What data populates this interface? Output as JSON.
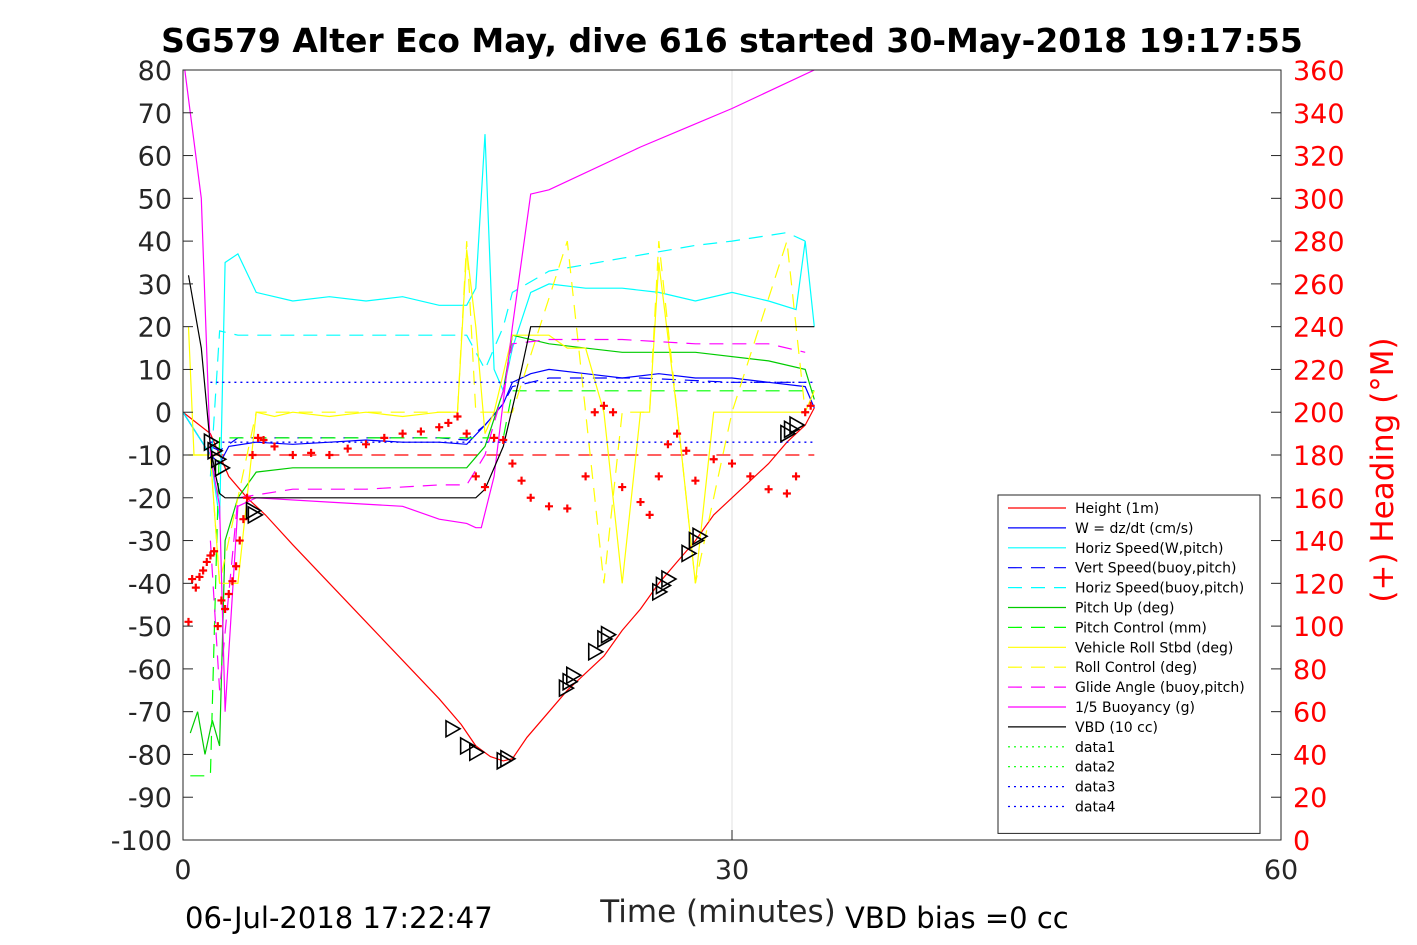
{
  "chart_data": {
    "type": "line",
    "title": "SG579 Alter Eco May, dive 616 started 30-May-2018 19:17:55",
    "xlabel": "Time (minutes)",
    "ylabel_right": "(+) Heading (°M)",
    "xlim": [
      0,
      60
    ],
    "ylim": [
      -100,
      80
    ],
    "ylim_right": [
      0,
      360
    ],
    "x_ticks": [
      "0",
      "30",
      "60"
    ],
    "y_ticks": [
      "80",
      "70",
      "60",
      "50",
      "40",
      "30",
      "20",
      "10",
      "0",
      "-10",
      "-20",
      "-30",
      "-40",
      "-50",
      "-60",
      "-70",
      "-80",
      "-90",
      "-100"
    ],
    "y_right_ticks": [
      "360",
      "340",
      "320",
      "300",
      "280",
      "260",
      "240",
      "220",
      "200",
      "180",
      "160",
      "140",
      "120",
      "100",
      "80",
      "60",
      "40",
      "20",
      "0"
    ],
    "grid": "x-only",
    "legend_position": "right",
    "footer_left": "06-Jul-2018 17:22:47",
    "footer_right": "VBD bias =0 cc",
    "series": [
      {
        "name": "Height (1m)",
        "color": "#ff0000",
        "style": "solid",
        "x": [
          0.0,
          1.5,
          2.0,
          2.5,
          3.5,
          4.5,
          6,
          8,
          10,
          12,
          14,
          15.2,
          16,
          16.8,
          17.5,
          18.0,
          18.8,
          20,
          21,
          22,
          23,
          24,
          25,
          26,
          27,
          28,
          29,
          30,
          31,
          32,
          33,
          34,
          34.5
        ],
        "y": [
          0,
          -5,
          -10,
          -15,
          -20,
          -24,
          -31,
          -40,
          -49,
          -58,
          -67,
          -73,
          -78,
          -80.5,
          -81.5,
          -81,
          -76,
          -70,
          -65,
          -61,
          -57,
          -51,
          -46,
          -40,
          -35,
          -30,
          -24,
          -20,
          -16,
          -12,
          -7,
          -3,
          1
        ]
      },
      {
        "name": "W = dz/dt (cm/s)",
        "color": "#0000ff",
        "style": "solid",
        "x": [
          0,
          1.5,
          2,
          2.5,
          4,
          6,
          8,
          10,
          12,
          14,
          15.5,
          16.5,
          17.5,
          18,
          19,
          20,
          22,
          24,
          26,
          28,
          30,
          32,
          34,
          34.5
        ],
        "y": [
          0,
          -10,
          -12,
          -8,
          -7,
          -7.5,
          -7,
          -6.5,
          -7,
          -7,
          -7.5,
          -3,
          2,
          7,
          9,
          10,
          9,
          8,
          9,
          8,
          8,
          7,
          6,
          1
        ]
      },
      {
        "name": "Horiz Speed(W,pitch)",
        "color": "#00ffff",
        "style": "solid",
        "x": [
          0,
          1.5,
          2,
          2.3,
          3,
          4,
          6,
          8,
          10,
          12,
          14,
          15.5,
          16,
          16.5,
          17,
          17.5,
          18,
          19,
          20,
          22,
          24,
          26,
          28,
          30,
          32,
          33.5,
          34,
          34.5
        ],
        "y": [
          0,
          -10,
          -25,
          35,
          37,
          28,
          26,
          27,
          26,
          27,
          25,
          25,
          29,
          65,
          10,
          5,
          15,
          28,
          30,
          29,
          29,
          28,
          26,
          28,
          26,
          24,
          40,
          20
        ]
      },
      {
        "name": "Vert Speed(buoy,pitch)",
        "color": "#0000ff",
        "style": "dashed",
        "x": [
          1.5,
          2,
          3,
          6,
          10,
          14,
          15.5,
          16.5,
          17.5,
          18,
          20,
          25,
          30,
          34
        ],
        "y": [
          -8,
          -9,
          -6,
          -6,
          -6,
          -6,
          -6.5,
          -3,
          2,
          6,
          8,
          8,
          7,
          7
        ]
      },
      {
        "name": "Horiz Speed(buoy,pitch)",
        "color": "#00ffff",
        "style": "dashed",
        "x": [
          1.5,
          2,
          3,
          6,
          10,
          14,
          15.5,
          16.5,
          17.5,
          18,
          20,
          24,
          28,
          30,
          33,
          34
        ],
        "y": [
          -15,
          19,
          18,
          18,
          18,
          18,
          18,
          10,
          20,
          28,
          33,
          36,
          39,
          40,
          42,
          40
        ]
      },
      {
        "name": "Pitch Up (deg)",
        "color": "#00cc00",
        "style": "solid",
        "x": [
          0.4,
          0.8,
          1.2,
          1.6,
          2,
          2.3,
          3,
          4,
          6,
          10,
          14,
          15.5,
          16.5,
          17.5,
          18,
          20,
          24,
          28,
          32,
          34,
          34.5
        ],
        "y": [
          -75,
          -70,
          -80,
          -72,
          -78,
          -30,
          -20,
          -14,
          -13,
          -13,
          -13,
          -13,
          -8,
          5,
          18,
          16,
          14,
          14,
          12,
          10,
          3
        ]
      },
      {
        "name": "Pitch Control (mm)",
        "color": "#00ff00",
        "style": "dashed",
        "x": [
          0.4,
          1.5,
          2,
          2.5,
          16,
          17.5,
          18,
          34.5
        ],
        "y": [
          -85,
          -85,
          -6,
          -6,
          -6,
          -6,
          5,
          5
        ]
      },
      {
        "name": "Vehicle Roll Stbd (deg)",
        "color": "#ffff00",
        "style": "solid",
        "x": [
          0.3,
          0.6,
          1.5,
          2,
          3,
          4,
          5,
          6,
          8,
          10,
          12,
          14,
          15,
          15.5,
          16,
          16.5,
          17,
          18,
          20,
          21,
          22,
          23,
          24,
          25,
          25.5,
          26,
          27,
          28,
          29,
          30,
          32,
          33,
          34,
          34.5
        ],
        "y": [
          20,
          -10,
          -10,
          -40,
          -40,
          0,
          -1,
          0,
          -1,
          0,
          -1,
          0,
          0,
          38,
          20,
          -5,
          0,
          18,
          18,
          15,
          15,
          0,
          -40,
          0,
          0,
          35,
          0,
          -40,
          0,
          0,
          0,
          0,
          0,
          5
        ]
      },
      {
        "name": "Roll Control (deg)",
        "color": "#ffff00",
        "style": "dashed",
        "x": [
          0.3,
          1.5,
          2,
          4,
          8,
          12,
          15,
          15.5,
          16,
          16.5,
          18,
          21,
          22,
          23,
          24,
          25.5,
          26,
          27,
          28,
          30,
          33,
          34
        ],
        "y": [
          -10,
          -10,
          -40,
          0,
          0,
          0,
          0,
          40,
          0,
          0,
          0,
          40,
          0,
          -40,
          0,
          0,
          40,
          0,
          -40,
          0,
          40,
          0
        ]
      },
      {
        "name": "Glide Angle (buoy,pitch)",
        "color": "#ff00ff",
        "style": "dashed",
        "x": [
          1.5,
          2,
          3,
          6,
          10,
          14,
          15.5,
          16.5,
          17.5,
          18,
          20,
          24,
          28,
          32,
          34
        ],
        "y": [
          -30,
          -65,
          -20,
          -18,
          -18,
          -17,
          -17,
          -10,
          5,
          16,
          17,
          17,
          16,
          16,
          14
        ]
      },
      {
        "name": "1/5 Buoyancy (g)",
        "color": "#ff00ff",
        "style": "solid",
        "x": [
          0.1,
          1.0,
          1.5,
          2,
          2.3,
          3,
          4,
          8,
          12,
          14,
          15.5,
          16,
          16.3,
          17,
          18,
          19,
          20,
          25,
          30,
          34.5
        ],
        "y": [
          80,
          50,
          -10,
          -22,
          -70,
          -22,
          -20,
          -21,
          -22,
          -25,
          -26,
          -27,
          -27,
          -15,
          20,
          51,
          52,
          62,
          71,
          80
        ]
      },
      {
        "name": "VBD (10 cc)",
        "color": "#000000",
        "style": "solid",
        "x": [
          0.3,
          1.0,
          1.5,
          1.8,
          2.0,
          2.3,
          4,
          8,
          12,
          16,
          16.5,
          17.5,
          18.5,
          19,
          20,
          25,
          30,
          34.5
        ],
        "y": [
          32,
          15,
          -8,
          -15,
          -19,
          -20,
          -20,
          -20,
          -20,
          -20,
          -18,
          -8,
          10,
          20,
          20,
          20,
          20,
          20
        ]
      },
      {
        "name": "data1",
        "color": "#00ff00",
        "style": "dotted",
        "x": [],
        "y": []
      },
      {
        "name": "data2",
        "color": "#00ff00",
        "style": "dotted",
        "x": [],
        "y": []
      },
      {
        "name": "data3",
        "color": "#0000ff",
        "style": "dotted",
        "x": [
          1.5,
          34.5
        ],
        "y": [
          7,
          7
        ]
      },
      {
        "name": "data4",
        "color": "#0000ff",
        "style": "dotted",
        "x": [
          1.5,
          34.5
        ],
        "y": [
          -7,
          -7
        ]
      }
    ],
    "reference_line": {
      "color": "#ff0000",
      "style": "dashed",
      "x": [
        1.5,
        34.5
      ],
      "y": [
        -10,
        -10
      ]
    },
    "heading_points": {
      "color": "#ff0000",
      "marker": "+",
      "x": [
        0.3,
        0.5,
        0.7,
        0.9,
        1.1,
        1.3,
        1.5,
        1.7,
        1.9,
        2.1,
        2.3,
        2.5,
        2.7,
        2.9,
        3.1,
        3.3,
        3.5,
        3.8,
        4.1,
        4.4,
        5,
        6,
        7,
        8,
        9,
        10,
        11,
        12,
        13,
        14,
        14.5,
        15,
        15.5,
        16,
        16.5,
        17,
        17.5,
        18,
        18.5,
        19,
        20,
        21,
        22,
        22.5,
        23,
        23.5,
        24,
        25,
        25.5,
        26,
        26.5,
        27,
        27.5,
        28,
        29,
        30,
        31,
        32,
        33,
        33.5,
        34,
        34.3
      ],
      "y": [
        102,
        122,
        118,
        123,
        126,
        130,
        133,
        135,
        100,
        112,
        108,
        115,
        121,
        128,
        140,
        150,
        160,
        180,
        188,
        187,
        184,
        180,
        181,
        180,
        183,
        185,
        188,
        190,
        191,
        193,
        195,
        198,
        190,
        170,
        165,
        188,
        187,
        176,
        168,
        160,
        156,
        155,
        170,
        200,
        203,
        200,
        165,
        158,
        152,
        170,
        185,
        190,
        182,
        168,
        178,
        176,
        170,
        164,
        162,
        170,
        200,
        203
      ]
    },
    "triangle_markers": {
      "color": "#000000",
      "marker": "triangle-right",
      "x": [
        1.5,
        1.7,
        1.9,
        2.1,
        3.8,
        3.9,
        14.7,
        15.5,
        16.0,
        17.5,
        17.7,
        20.9,
        21.1,
        21.3,
        22.5,
        23.0,
        23.2,
        26.0,
        26.2,
        26.5,
        27.6,
        28.0,
        28.2,
        33.0,
        33.2,
        33.5
      ],
      "y": [
        -7,
        -9,
        -11,
        -13,
        -23,
        -24,
        -74,
        -78,
        -79.5,
        -81.5,
        -81,
        -64.5,
        -63,
        -61.5,
        -56,
        -53,
        -52,
        -42,
        -40.5,
        -39,
        -33,
        -30,
        -29,
        -5,
        -4,
        -3
      ]
    }
  }
}
